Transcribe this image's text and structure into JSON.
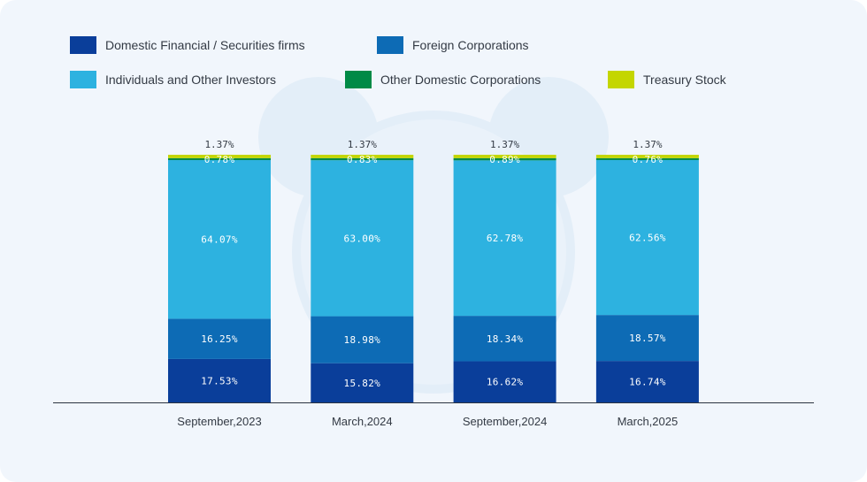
{
  "chart_data": {
    "type": "bar",
    "stacked": true,
    "categories": [
      "September,2023",
      "March,2024",
      "September,2024",
      "March,2025"
    ],
    "series": [
      {
        "name": "Domestic Financial / Securities firms",
        "color": "#0a3e9a",
        "values": [
          17.53,
          15.82,
          16.62,
          16.74
        ],
        "labels": [
          "17.53%",
          "15.82%",
          "16.62%",
          "16.74%"
        ]
      },
      {
        "name": "Foreign Corporations",
        "color": "#0d6bb5",
        "values": [
          16.25,
          18.98,
          18.34,
          18.57
        ],
        "labels": [
          "16.25%",
          "18.98%",
          "18.34%",
          "18.57%"
        ]
      },
      {
        "name": "Individuals and Other Investors",
        "color": "#2db2e0",
        "values": [
          64.07,
          63.0,
          62.78,
          62.56
        ],
        "labels": [
          "64.07%",
          "63.00%",
          "62.78%",
          "62.56%"
        ]
      },
      {
        "name": "Other Domestic Corporations",
        "color": "#008a46",
        "values": [
          0.78,
          0.83,
          0.89,
          0.76
        ],
        "labels": [
          "0.78%",
          "0.83%",
          "0.89%",
          "0.76%"
        ]
      },
      {
        "name": "Treasury Stock",
        "color": "#c4d600",
        "values": [
          1.37,
          1.37,
          1.37,
          1.37
        ],
        "labels": [
          "1.37%",
          "1.37%",
          "1.37%",
          "1.37%"
        ]
      }
    ],
    "ylim": [
      0,
      100
    ],
    "legend_position": "top",
    "grid": false
  }
}
